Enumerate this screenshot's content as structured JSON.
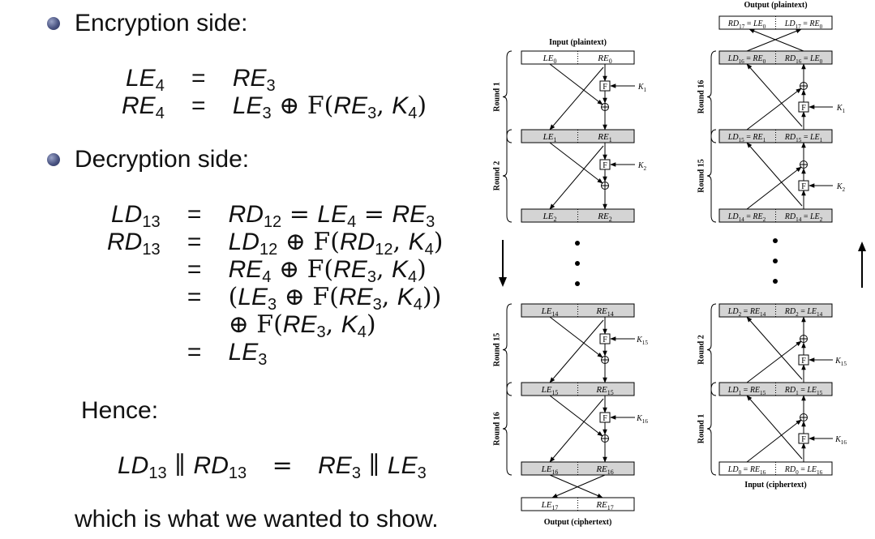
{
  "left": {
    "enc_heading": "Encryption side:",
    "dec_heading": "Decryption side:",
    "hence": "Hence:",
    "closing": "which is what we wanted to show.",
    "enc_eqs": [
      {
        "lhs": "LE",
        "lhs_sub": "4",
        "rhs": [
          [
            "i",
            "RE"
          ],
          [
            "s",
            "3"
          ]
        ]
      },
      {
        "lhs": "RE",
        "lhs_sub": "4",
        "rhs": [
          [
            "i",
            "LE"
          ],
          [
            "s",
            "3"
          ],
          [
            "t",
            " ⊕ F("
          ],
          [
            "i",
            "RE"
          ],
          [
            "s",
            "3"
          ],
          [
            "t",
            ", "
          ],
          [
            "i",
            "K"
          ],
          [
            "s",
            "4"
          ],
          [
            "t",
            ")"
          ]
        ]
      }
    ],
    "dec_eqs": [
      {
        "lhs": "LD",
        "lhs_sub": "13",
        "rhs": [
          [
            "i",
            "RD"
          ],
          [
            "s",
            "12"
          ],
          [
            "t",
            " = "
          ],
          [
            "i",
            "LE"
          ],
          [
            "s",
            "4"
          ],
          [
            "t",
            " = "
          ],
          [
            "i",
            "RE"
          ],
          [
            "s",
            "3"
          ]
        ]
      },
      {
        "lhs": "RD",
        "lhs_sub": "13",
        "rhs": [
          [
            "i",
            "LD"
          ],
          [
            "s",
            "12"
          ],
          [
            "t",
            " ⊕ F("
          ],
          [
            "i",
            "RD"
          ],
          [
            "s",
            "12"
          ],
          [
            "t",
            ", "
          ],
          [
            "i",
            "K"
          ],
          [
            "s",
            "4"
          ],
          [
            "t",
            ")"
          ]
        ]
      },
      {
        "lhs": "",
        "lhs_sub": "",
        "rhs": [
          [
            "i",
            "RE"
          ],
          [
            "s",
            "4"
          ],
          [
            "t",
            " ⊕ F("
          ],
          [
            "i",
            "RE"
          ],
          [
            "s",
            "3"
          ],
          [
            "t",
            ", "
          ],
          [
            "i",
            "K"
          ],
          [
            "s",
            "4"
          ],
          [
            "t",
            ")"
          ]
        ]
      },
      {
        "lhs": "",
        "lhs_sub": "",
        "rhs": [
          [
            "t",
            "("
          ],
          [
            "i",
            "LE"
          ],
          [
            "s",
            "3"
          ],
          [
            "t",
            " ⊕ F("
          ],
          [
            "i",
            "RE"
          ],
          [
            "s",
            "3"
          ],
          [
            "t",
            ", "
          ],
          [
            "i",
            "K"
          ],
          [
            "s",
            "4"
          ],
          [
            "t",
            "))"
          ]
        ]
      },
      {
        "lhs": "",
        "lhs_sub": "",
        "noeq": true,
        "rhs": [
          [
            "t",
            "⊕ F("
          ],
          [
            "i",
            "RE"
          ],
          [
            "s",
            "3"
          ],
          [
            "t",
            ", "
          ],
          [
            "i",
            "K"
          ],
          [
            "s",
            "4"
          ],
          [
            "t",
            ")"
          ]
        ]
      },
      {
        "lhs": "",
        "lhs_sub": "",
        "rhs": [
          [
            "i",
            "LE"
          ],
          [
            "s",
            "3"
          ]
        ]
      }
    ],
    "concat_eq": {
      "lhs": [
        [
          "i",
          "LD"
        ],
        [
          "s",
          "13"
        ],
        [
          "t",
          " ∥ "
        ],
        [
          "i",
          "RD"
        ],
        [
          "s",
          "13"
        ]
      ],
      "rhs": [
        [
          "i",
          "RE"
        ],
        [
          "s",
          "3"
        ],
        [
          "t",
          " ∥ "
        ],
        [
          "i",
          "LE"
        ],
        [
          "s",
          "3"
        ]
      ]
    },
    "eq_sign": "="
  },
  "encryption_diagram": {
    "top_label": "Input (plaintext)",
    "bottom_label": "Output (ciphertext)",
    "f_label": "F",
    "block_rows": [
      {
        "type": "input",
        "left": [
          [
            "i",
            "LE"
          ],
          [
            "s",
            "0"
          ]
        ],
        "right": [
          [
            "i",
            "RE"
          ],
          [
            "s",
            "0"
          ]
        ]
      },
      {
        "type": "mid",
        "left": [
          [
            "i",
            "LE"
          ],
          [
            "s",
            "1"
          ]
        ],
        "right": [
          [
            "i",
            "RE"
          ],
          [
            "s",
            "1"
          ]
        ]
      },
      {
        "type": "mid",
        "left": [
          [
            "i",
            "LE"
          ],
          [
            "s",
            "2"
          ]
        ],
        "right": [
          [
            "i",
            "RE"
          ],
          [
            "s",
            "2"
          ]
        ]
      },
      {
        "type": "mid",
        "left": [
          [
            "i",
            "LE"
          ],
          [
            "s",
            "14"
          ]
        ],
        "right": [
          [
            "i",
            "RE"
          ],
          [
            "s",
            "14"
          ]
        ]
      },
      {
        "type": "mid",
        "left": [
          [
            "i",
            "LE"
          ],
          [
            "s",
            "15"
          ]
        ],
        "right": [
          [
            "i",
            "RE"
          ],
          [
            "s",
            "15"
          ]
        ]
      },
      {
        "type": "mid",
        "left": [
          [
            "i",
            "LE"
          ],
          [
            "s",
            "16"
          ]
        ],
        "right": [
          [
            "i",
            "RE"
          ],
          [
            "s",
            "16"
          ]
        ]
      },
      {
        "type": "output",
        "left": [
          [
            "i",
            "LE"
          ],
          [
            "s",
            "17"
          ]
        ],
        "right": [
          [
            "i",
            "RE"
          ],
          [
            "s",
            "17"
          ]
        ]
      }
    ],
    "rounds": [
      "Round 1",
      "Round 2",
      "Round 15",
      "Round 16"
    ],
    "keys": [
      [
        [
          "i",
          "K"
        ],
        [
          "s",
          "1"
        ]
      ],
      [
        [
          "i",
          "K"
        ],
        [
          "s",
          "2"
        ]
      ],
      [
        [
          "i",
          "K"
        ],
        [
          "s",
          "15"
        ]
      ],
      [
        [
          "i",
          "K"
        ],
        [
          "s",
          "16"
        ]
      ]
    ]
  },
  "decryption_diagram": {
    "top_label": "Output (plaintext)",
    "bottom_label": "Input (ciphertext)",
    "f_label": "F",
    "block_rows": [
      {
        "type": "output",
        "left": [
          [
            "i",
            "RD"
          ],
          [
            "s",
            "17"
          ],
          [
            "t",
            " = "
          ],
          [
            "i",
            "LE"
          ],
          [
            "s",
            "0"
          ]
        ],
        "right": [
          [
            "i",
            "LD"
          ],
          [
            "s",
            "17"
          ],
          [
            "t",
            " = "
          ],
          [
            "i",
            "RE"
          ],
          [
            "s",
            "0"
          ]
        ]
      },
      {
        "type": "mid",
        "left": [
          [
            "i",
            "LD"
          ],
          [
            "s",
            "16"
          ],
          [
            "t",
            " = "
          ],
          [
            "i",
            "RE"
          ],
          [
            "s",
            "0"
          ]
        ],
        "right": [
          [
            "i",
            "RD"
          ],
          [
            "s",
            "16"
          ],
          [
            "t",
            " = "
          ],
          [
            "i",
            "LE"
          ],
          [
            "s",
            "0"
          ]
        ]
      },
      {
        "type": "mid",
        "left": [
          [
            "i",
            "LD"
          ],
          [
            "s",
            "15"
          ],
          [
            "t",
            " = "
          ],
          [
            "i",
            "RE"
          ],
          [
            "s",
            "1"
          ]
        ],
        "right": [
          [
            "i",
            "RD"
          ],
          [
            "s",
            "15"
          ],
          [
            "t",
            " = "
          ],
          [
            "i",
            "LE"
          ],
          [
            "s",
            "1"
          ]
        ]
      },
      {
        "type": "mid",
        "left": [
          [
            "i",
            "LD"
          ],
          [
            "s",
            "14"
          ],
          [
            "t",
            " = "
          ],
          [
            "i",
            "RE"
          ],
          [
            "s",
            "2"
          ]
        ],
        "right": [
          [
            "i",
            "RD"
          ],
          [
            "s",
            "14"
          ],
          [
            "t",
            " = "
          ],
          [
            "i",
            "LE"
          ],
          [
            "s",
            "2"
          ]
        ]
      },
      {
        "type": "mid",
        "left": [
          [
            "i",
            "LD"
          ],
          [
            "s",
            "2"
          ],
          [
            "t",
            " = "
          ],
          [
            "i",
            "RE"
          ],
          [
            "s",
            "14"
          ]
        ],
        "right": [
          [
            "i",
            "RD"
          ],
          [
            "s",
            "2"
          ],
          [
            "t",
            " = "
          ],
          [
            "i",
            "LE"
          ],
          [
            "s",
            "14"
          ]
        ]
      },
      {
        "type": "mid",
        "left": [
          [
            "i",
            "LD"
          ],
          [
            "s",
            "1"
          ],
          [
            "t",
            " = "
          ],
          [
            "i",
            "RE"
          ],
          [
            "s",
            "15"
          ]
        ],
        "right": [
          [
            "i",
            "RD"
          ],
          [
            "s",
            "1"
          ],
          [
            "t",
            " = "
          ],
          [
            "i",
            "LE"
          ],
          [
            "s",
            "15"
          ]
        ]
      },
      {
        "type": "input",
        "left": [
          [
            "i",
            "LD"
          ],
          [
            "s",
            "0"
          ],
          [
            "t",
            " = "
          ],
          [
            "i",
            "RE"
          ],
          [
            "s",
            "16"
          ]
        ],
        "right": [
          [
            "i",
            "RD"
          ],
          [
            "s",
            "0"
          ],
          [
            "t",
            " = "
          ],
          [
            "i",
            "LE"
          ],
          [
            "s",
            "16"
          ]
        ]
      }
    ],
    "rounds": [
      "Round 16",
      "Round 15",
      "Round 2",
      "Round 1"
    ],
    "keys": [
      [
        [
          "i",
          "K"
        ],
        [
          "s",
          "1"
        ]
      ],
      [
        [
          "i",
          "K"
        ],
        [
          "s",
          "2"
        ]
      ],
      [
        [
          "i",
          "K"
        ],
        [
          "s",
          "15"
        ]
      ],
      [
        [
          "i",
          "K"
        ],
        [
          "s",
          "16"
        ]
      ]
    ]
  },
  "colors": {
    "gray_block": "#d4d4d4",
    "white_block": "#ffffff",
    "line": "#000000",
    "bullet": "#4a5482"
  }
}
